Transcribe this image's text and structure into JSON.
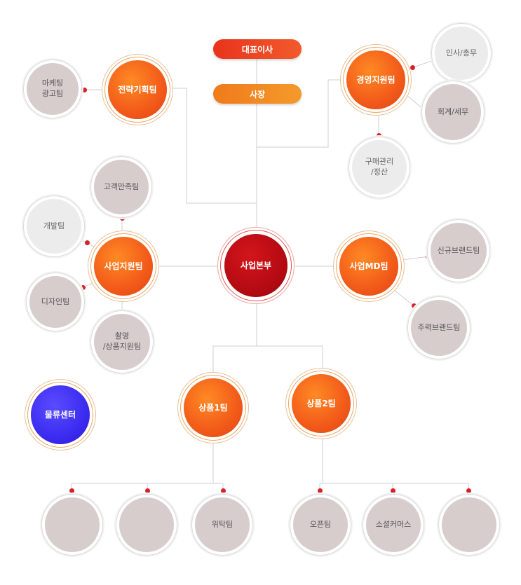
{
  "top": {
    "ceo": "대표이사",
    "president": "사장"
  },
  "center": {
    "hq": "사업본부"
  },
  "teams": {
    "strategy": "전략기획팀",
    "management": "경영지원팀",
    "biz_support": "사업지원팀",
    "biz_md": "사업MD팀",
    "product1": "상품1팀",
    "product2": "상품2팀",
    "logistics": "물류센터"
  },
  "subunits": {
    "marketing": "마케팅\n광고팀",
    "hr": "인사/총무",
    "accounting": "회계/세무",
    "purchasing": "구매관리\n/정산",
    "cs": "고객만족팀",
    "dev": "개발팀",
    "design": "디자인팀",
    "photo": "촬영\n/상품지원팀",
    "new_brand": "신규브랜드팀",
    "main_brand": "주력브랜드팀",
    "p1_a": "",
    "p1_b": "",
    "consignment": "위탁팀",
    "open": "오픈팀",
    "social": "소셜커머스",
    "p2_c": ""
  },
  "colors": {
    "orange": "#f25a1a",
    "red": "#b30a12",
    "blue": "#3c2cf0",
    "gray": "#d7cdcc",
    "light": "#ececec",
    "dot": "#d8202a",
    "line": "#cfcfcf"
  }
}
